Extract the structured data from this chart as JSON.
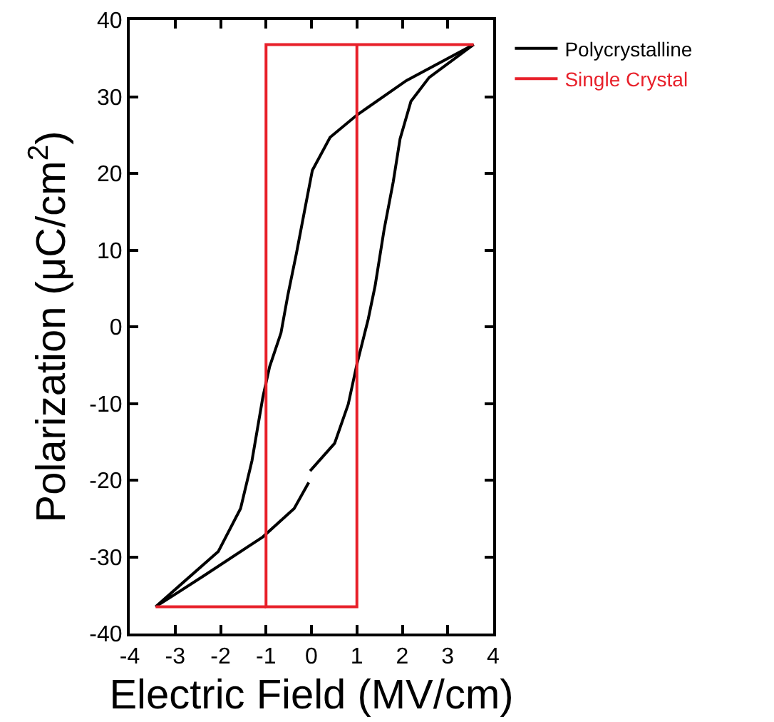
{
  "chart_data": {
    "type": "line",
    "xlabel": "Electric Field (MV/cm)",
    "ylabel": "Polarization (μC/cm$^{2}$)",
    "xlim": [
      -4,
      4
    ],
    "xticks": [
      -4,
      -3,
      -2,
      -1,
      0,
      1,
      2,
      3,
      4
    ],
    "ylim": [
      -40,
      40
    ],
    "yticks": [
      -40,
      -30,
      -20,
      -10,
      0,
      10,
      20,
      30,
      40
    ],
    "grid": false,
    "legend": "right",
    "marker": "none",
    "line_style": "solid",
    "series": [
      {
        "name": "Polycrystalline",
        "color": "#000000",
        "x": [
          3.57,
          2.09,
          1.0,
          0.41,
          0.02,
          -0.13,
          -0.33,
          -0.52,
          -0.67,
          -0.92,
          -1.07,
          -1.31,
          -1.56,
          -2.05,
          -3.43,
          -2.35,
          -1.07,
          -0.38,
          -0.06,
          null,
          -0.03,
          0.51,
          0.81,
          1.0,
          1.25,
          1.4,
          1.6,
          1.8,
          1.95,
          2.19,
          2.59,
          3.57
        ],
        "values": [
          36.8,
          32.1,
          27.6,
          24.7,
          20.4,
          15.8,
          9.6,
          4.1,
          -0.8,
          -5.2,
          -9.2,
          -17.5,
          -23.7,
          -29.3,
          -36.5,
          -32.4,
          -27.4,
          -23.7,
          -20.3,
          null,
          -18.8,
          -15.2,
          -10.1,
          -4.9,
          1.0,
          5.3,
          12.7,
          18.9,
          24.5,
          29.4,
          32.5,
          36.8
        ]
      },
      {
        "name": "Single Crystal",
        "color": "#e8202a",
        "x": [
          3.57,
          -1,
          -1,
          1,
          1,
          null,
          -1,
          -3.43
        ],
        "values": [
          36.8,
          36.8,
          -36.5,
          -36.5,
          36.8,
          null,
          -36.5,
          -36.5
        ]
      }
    ]
  }
}
